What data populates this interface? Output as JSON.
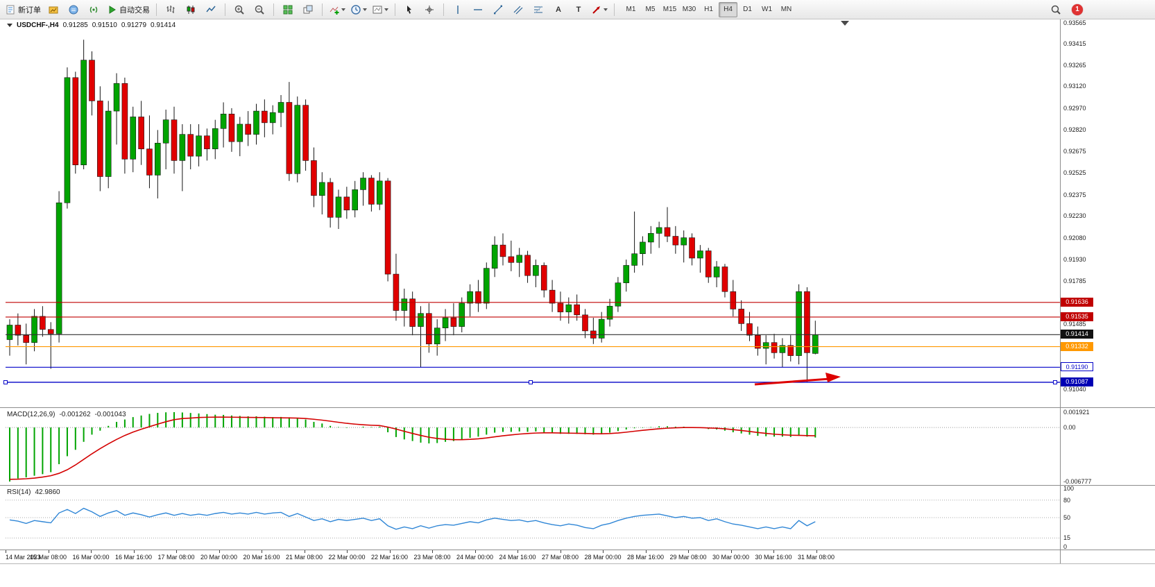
{
  "toolbar": {
    "new_order_label": "新订单",
    "auto_trading_label": "自动交易",
    "timeframes": [
      "M1",
      "M5",
      "M15",
      "M30",
      "H1",
      "H4",
      "D1",
      "W1",
      "MN"
    ],
    "active_timeframe": "H4",
    "notification_count": "1",
    "text_tool_label": "A",
    "label_tool_label": "T"
  },
  "chart_header": {
    "symbol_period": "USDCHF-,H4",
    "open": "0.91285",
    "high": "0.91510",
    "low": "0.91279",
    "close": "0.91414"
  },
  "macd_header": {
    "main": "-0.001262",
    "signal": "-0.001043"
  },
  "rsi_header": {
    "value": "42.9860"
  },
  "price_axis": {
    "labels": [
      "0.93565",
      "0.93415",
      "0.93265",
      "0.93120",
      "0.92970",
      "0.92820",
      "0.92675",
      "0.92525",
      "0.92375",
      "0.92230",
      "0.92080",
      "0.91930",
      "0.91785",
      "0.91635",
      "0.91485",
      "0.91335",
      "0.91190",
      "0.91040"
    ]
  },
  "levels": [
    {
      "label": "0.91636",
      "price": 0.91636,
      "line": "#c00000",
      "bg": "#c00000",
      "fg": "#ffffff",
      "filled": true,
      "selected": false
    },
    {
      "label": "0.91535",
      "price": 0.91535,
      "line": "#c00000",
      "bg": "#c00000",
      "fg": "#ffffff",
      "filled": true,
      "selected": false
    },
    {
      "label": "0.91414",
      "price": 0.91414,
      "line": "#303030",
      "bg": "#121212",
      "fg": "#ffffff",
      "filled": true,
      "selected": false
    },
    {
      "label": "0.91332",
      "price": 0.91332,
      "line": "#ff9800",
      "bg": "#ff9800",
      "fg": "#ffffff",
      "filled": true,
      "selected": false
    },
    {
      "label": "0.91190",
      "price": 0.9119,
      "line": "#0000c8",
      "bg": "#ffffff",
      "fg": "#0000c8",
      "filled": false,
      "selected": false
    },
    {
      "label": "0.91087",
      "price": 0.91087,
      "line": "#0000c8",
      "bg": "#0000b4",
      "fg": "#ffffff",
      "filled": true,
      "selected": true
    }
  ],
  "colors": {
    "bull": "#00a400",
    "bear": "#e00000",
    "macd_hist": "#00a400",
    "macd_signal": "#d40000",
    "rsi_line": "#2f86d6",
    "annotation": "#dd0000"
  },
  "annotation": {
    "type": "arrow",
    "color": "#dd0000"
  },
  "time_axis": {
    "labels": [
      "14 Mar 2023",
      "15 Mar 08:00",
      "16 Mar 00:00",
      "16 Mar 16:00",
      "17 Mar 08:00",
      "20 Mar 00:00",
      "20 Mar 16:00",
      "21 Mar 08:00",
      "22 Mar 00:00",
      "22 Mar 16:00",
      "23 Mar 08:00",
      "24 Mar 00:00",
      "24 Mar 16:00",
      "27 Mar 08:00",
      "28 Mar 00:00",
      "28 Mar 16:00",
      "29 Mar 08:00",
      "30 Mar 00:00",
      "30 Mar 16:00",
      "31 Mar 08:00"
    ]
  },
  "chart_data": [
    {
      "type": "candlestick",
      "title": "USDCHF-,H4",
      "ylim": [
        0.9092,
        0.9357
      ],
      "candles": [
        [
          0.9138,
          0.9152,
          0.9127,
          0.9148
        ],
        [
          0.9148,
          0.9156,
          0.9134,
          0.9141
        ],
        [
          0.9141,
          0.9149,
          0.9121,
          0.9136
        ],
        [
          0.9136,
          0.9159,
          0.913,
          0.9154
        ],
        [
          0.9154,
          0.9161,
          0.914,
          0.9145
        ],
        [
          0.9145,
          0.915,
          0.9118,
          0.9142
        ],
        [
          0.9142,
          0.924,
          0.9136,
          0.9232
        ],
        [
          0.9232,
          0.9325,
          0.9228,
          0.9318
        ],
        [
          0.9318,
          0.9322,
          0.9252,
          0.9258
        ],
        [
          0.9258,
          0.9344,
          0.9255,
          0.933
        ],
        [
          0.933,
          0.9336,
          0.9292,
          0.9302
        ],
        [
          0.9302,
          0.9312,
          0.924,
          0.925
        ],
        [
          0.925,
          0.9302,
          0.9242,
          0.9295
        ],
        [
          0.9295,
          0.9321,
          0.9272,
          0.9314
        ],
        [
          0.9314,
          0.9318,
          0.9252,
          0.9262
        ],
        [
          0.9262,
          0.9298,
          0.9253,
          0.9291
        ],
        [
          0.9291,
          0.9302,
          0.9258,
          0.9269
        ],
        [
          0.9269,
          0.9292,
          0.9242,
          0.9251
        ],
        [
          0.9251,
          0.9282,
          0.9235,
          0.9273
        ],
        [
          0.9273,
          0.9296,
          0.9255,
          0.9289
        ],
        [
          0.9289,
          0.9298,
          0.9252,
          0.9261
        ],
        [
          0.9261,
          0.9286,
          0.924,
          0.9279
        ],
        [
          0.9279,
          0.9286,
          0.9255,
          0.9264
        ],
        [
          0.9264,
          0.9286,
          0.9257,
          0.9278
        ],
        [
          0.9278,
          0.9283,
          0.9261,
          0.9269
        ],
        [
          0.9269,
          0.9289,
          0.9262,
          0.9283
        ],
        [
          0.9283,
          0.9301,
          0.927,
          0.9293
        ],
        [
          0.9293,
          0.9297,
          0.9267,
          0.9274
        ],
        [
          0.9274,
          0.9291,
          0.9264,
          0.9286
        ],
        [
          0.9286,
          0.9295,
          0.9271,
          0.9279
        ],
        [
          0.9279,
          0.93,
          0.9272,
          0.9295
        ],
        [
          0.9295,
          0.9303,
          0.9277,
          0.9287
        ],
        [
          0.9287,
          0.9299,
          0.9279,
          0.9294
        ],
        [
          0.9294,
          0.9306,
          0.9284,
          0.9301
        ],
        [
          0.9301,
          0.9315,
          0.9247,
          0.9252
        ],
        [
          0.9252,
          0.9305,
          0.9246,
          0.9299
        ],
        [
          0.9299,
          0.9303,
          0.9254,
          0.9261
        ],
        [
          0.9261,
          0.927,
          0.9229,
          0.9237
        ],
        [
          0.9237,
          0.9253,
          0.9224,
          0.9246
        ],
        [
          0.9246,
          0.9249,
          0.9215,
          0.9222
        ],
        [
          0.9222,
          0.9241,
          0.9214,
          0.9236
        ],
        [
          0.9236,
          0.9243,
          0.9221,
          0.9227
        ],
        [
          0.9227,
          0.9247,
          0.9222,
          0.9241
        ],
        [
          0.9241,
          0.9253,
          0.923,
          0.9249
        ],
        [
          0.9249,
          0.9251,
          0.9226,
          0.9231
        ],
        [
          0.9231,
          0.9253,
          0.9227,
          0.9247
        ],
        [
          0.9247,
          0.9249,
          0.9178,
          0.9183
        ],
        [
          0.9183,
          0.9197,
          0.9151,
          0.9158
        ],
        [
          0.9158,
          0.9173,
          0.9147,
          0.9166
        ],
        [
          0.9166,
          0.9171,
          0.9141,
          0.9147
        ],
        [
          0.9147,
          0.9161,
          0.9119,
          0.9156
        ],
        [
          0.9156,
          0.9163,
          0.9129,
          0.9135
        ],
        [
          0.9135,
          0.9152,
          0.9127,
          0.9146
        ],
        [
          0.9146,
          0.9159,
          0.9137,
          0.9153
        ],
        [
          0.9153,
          0.9163,
          0.9141,
          0.9147
        ],
        [
          0.9147,
          0.9167,
          0.9143,
          0.9163
        ],
        [
          0.9163,
          0.9176,
          0.9154,
          0.9171
        ],
        [
          0.9171,
          0.9179,
          0.9157,
          0.9163
        ],
        [
          0.9163,
          0.9191,
          0.9159,
          0.9187
        ],
        [
          0.9187,
          0.9209,
          0.9181,
          0.9203
        ],
        [
          0.9203,
          0.9211,
          0.9189,
          0.9195
        ],
        [
          0.9195,
          0.9206,
          0.9185,
          0.9191
        ],
        [
          0.9191,
          0.9201,
          0.9181,
          0.9196
        ],
        [
          0.9196,
          0.9199,
          0.9177,
          0.9182
        ],
        [
          0.9182,
          0.9193,
          0.9174,
          0.9189
        ],
        [
          0.9189,
          0.9191,
          0.9167,
          0.9172
        ],
        [
          0.9172,
          0.9179,
          0.9157,
          0.9163
        ],
        [
          0.9163,
          0.9171,
          0.9151,
          0.9157
        ],
        [
          0.9157,
          0.9167,
          0.9149,
          0.9162
        ],
        [
          0.9162,
          0.9169,
          0.9151,
          0.9155
        ],
        [
          0.9155,
          0.9159,
          0.9139,
          0.9144
        ],
        [
          0.9144,
          0.9153,
          0.9135,
          0.9139
        ],
        [
          0.9139,
          0.9157,
          0.9136,
          0.9152
        ],
        [
          0.9152,
          0.9166,
          0.9147,
          0.9161
        ],
        [
          0.9161,
          0.9181,
          0.9157,
          0.9177
        ],
        [
          0.9177,
          0.9193,
          0.9171,
          0.9189
        ],
        [
          0.9189,
          0.9226,
          0.9184,
          0.9197
        ],
        [
          0.9197,
          0.9209,
          0.9189,
          0.9205
        ],
        [
          0.9205,
          0.9216,
          0.9197,
          0.9211
        ],
        [
          0.9211,
          0.9219,
          0.9201,
          0.9215
        ],
        [
          0.9215,
          0.9229,
          0.9205,
          0.9209
        ],
        [
          0.9209,
          0.9216,
          0.9197,
          0.9203
        ],
        [
          0.9203,
          0.9213,
          0.9191,
          0.9208
        ],
        [
          0.9208,
          0.9211,
          0.9189,
          0.9194
        ],
        [
          0.9194,
          0.9203,
          0.9184,
          0.9199
        ],
        [
          0.9199,
          0.9201,
          0.9177,
          0.9181
        ],
        [
          0.9181,
          0.9192,
          0.9174,
          0.9188
        ],
        [
          0.9188,
          0.919,
          0.9167,
          0.9171
        ],
        [
          0.9171,
          0.9179,
          0.9154,
          0.9159
        ],
        [
          0.9159,
          0.9165,
          0.9144,
          0.9149
        ],
        [
          0.9149,
          0.9157,
          0.9137,
          0.9141
        ],
        [
          0.9141,
          0.9147,
          0.9127,
          0.9132
        ],
        [
          0.9132,
          0.9141,
          0.9121,
          0.9136
        ],
        [
          0.9136,
          0.9142,
          0.9125,
          0.9129
        ],
        [
          0.9129,
          0.9139,
          0.9119,
          0.9134
        ],
        [
          0.9134,
          0.9141,
          0.9123,
          0.9127
        ],
        [
          0.9127,
          0.9176,
          0.9121,
          0.9171
        ],
        [
          0.9171,
          0.9174,
          0.9109,
          0.9129
        ],
        [
          0.91285,
          0.9151,
          0.91279,
          0.91414
        ]
      ]
    },
    {
      "type": "bar",
      "name": "MACD(12,26,9)",
      "ylim": [
        -0.006777,
        0.001921
      ],
      "axis_labels": [
        "0.001921",
        "0.00",
        "-0.006777"
      ],
      "histogram": [
        -0.006777,
        -0.0064,
        -0.00625,
        -0.00605,
        -0.00585,
        -0.0056,
        -0.0046,
        -0.0036,
        -0.0028,
        -0.0018,
        -0.0009,
        -0.0004,
        0.0002,
        0.0007,
        0.001,
        0.0013,
        0.0015,
        0.0017,
        0.00183,
        0.0019,
        0.001921,
        0.00188,
        0.00182,
        0.00176,
        0.00168,
        0.0016,
        0.00158,
        0.0015,
        0.00145,
        0.0014,
        0.0014,
        0.00135,
        0.0013,
        0.00132,
        0.00128,
        0.0012,
        0.001,
        0.0007,
        0.0005,
        0.0002,
        5e-05,
        -5e-05,
        0.0,
        0.0001,
        5e-05,
        0.0001,
        -0.0006,
        -0.0012,
        -0.0015,
        -0.0017,
        -0.0019,
        -0.002,
        -0.00195,
        -0.0018,
        -0.0017,
        -0.0015,
        -0.0013,
        -0.00115,
        -0.0009,
        -0.00065,
        -0.00055,
        -0.00055,
        -0.0005,
        -0.00055,
        -0.0005,
        -0.0006,
        -0.0007,
        -0.0008,
        -0.0008,
        -0.0008,
        -0.00085,
        -0.0009,
        -0.0008,
        -0.00065,
        -0.00045,
        -0.00025,
        -0.0001,
        -5e-05,
        5e-05,
        0.00015,
        0.00015,
        0.0001,
        0.0001,
        0.0,
        -5e-05,
        -0.0002,
        -0.00025,
        -0.0004,
        -0.0006,
        -0.00075,
        -0.0009,
        -0.00105,
        -0.0011,
        -0.00115,
        -0.00115,
        -0.0012,
        -0.00105,
        -0.00115,
        -0.001262
      ],
      "signal": [
        -0.0065,
        -0.00648,
        -0.00643,
        -0.00635,
        -0.00622,
        -0.00605,
        -0.00575,
        -0.0053,
        -0.0047,
        -0.004,
        -0.0033,
        -0.00265,
        -0.00205,
        -0.0015,
        -0.001,
        -0.00058,
        -0.00022,
        0.0001,
        0.00042,
        0.00072,
        0.00098,
        0.00112,
        0.00118,
        0.00125,
        0.00128,
        0.0013,
        0.0013,
        0.00129,
        0.00127,
        0.00126,
        0.00125,
        0.00124,
        0.00122,
        0.00121,
        0.0012,
        0.00118,
        0.00112,
        0.00103,
        0.00092,
        0.00079,
        0.00065,
        0.00052,
        0.00042,
        0.00034,
        0.00028,
        0.00024,
        5e-05,
        -0.0002,
        -0.00048,
        -0.00075,
        -0.001,
        -0.00122,
        -0.00138,
        -0.00148,
        -0.00153,
        -0.00153,
        -0.00149,
        -0.00142,
        -0.00131,
        -0.00117,
        -0.00104,
        -0.00093,
        -0.00083,
        -0.00076,
        -0.0007,
        -0.00067,
        -0.00067,
        -0.00069,
        -0.00071,
        -0.00073,
        -0.00075,
        -0.00078,
        -0.00079,
        -0.00076,
        -0.00069,
        -0.00059,
        -0.00047,
        -0.00036,
        -0.00026,
        -0.00016,
        -9e-05,
        -4e-05,
        -1e-05,
        -1e-05,
        -2e-05,
        -6e-05,
        -0.0001,
        -0.00017,
        -0.00027,
        -0.00038,
        -0.0005,
        -0.00063,
        -0.00074,
        -0.00084,
        -0.00091,
        -0.00097,
        -0.00099,
        -0.00102,
        -0.001043
      ]
    },
    {
      "type": "line",
      "name": "RSI(14)",
      "ylim": [
        0,
        100
      ],
      "levels": [
        80,
        50,
        15
      ],
      "axis_labels": [
        "100",
        "80",
        "50",
        "15",
        "0"
      ],
      "values": [
        46,
        44,
        40,
        45,
        43,
        41,
        58,
        64,
        57,
        66,
        60,
        52,
        58,
        62,
        54,
        58,
        55,
        51,
        55,
        58,
        54,
        57,
        54,
        56,
        54,
        57,
        59,
        56,
        58,
        56,
        59,
        56,
        58,
        59,
        52,
        57,
        51,
        45,
        48,
        43,
        47,
        45,
        47,
        49,
        45,
        48,
        36,
        30,
        34,
        31,
        36,
        32,
        36,
        38,
        37,
        40,
        43,
        41,
        46,
        49,
        47,
        45,
        46,
        43,
        45,
        41,
        38,
        36,
        39,
        37,
        33,
        31,
        37,
        40,
        45,
        49,
        52,
        54,
        55,
        56,
        53,
        50,
        52,
        49,
        50,
        45,
        48,
        43,
        39,
        37,
        34,
        31,
        34,
        31,
        34,
        31,
        45,
        36,
        42.986
      ]
    }
  ]
}
